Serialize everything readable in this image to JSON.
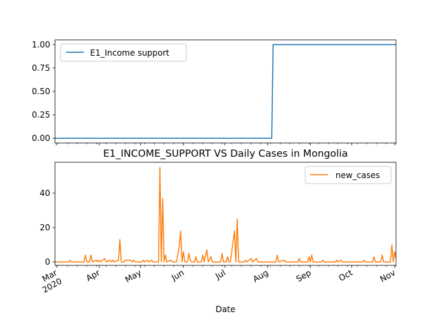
{
  "chart_data": [
    {
      "type": "line",
      "title": "",
      "xlabel": "",
      "ylabel": "",
      "xlim": [
        "2020-02-29",
        "2020-11-02"
      ],
      "ylim": [
        -0.05,
        1.05
      ],
      "yticks": [
        0.0,
        0.25,
        0.5,
        0.75,
        1.0
      ],
      "ytick_labels": [
        "0.00",
        "0.25",
        "0.50",
        "0.75",
        "1.00"
      ],
      "grid": false,
      "legend": "upper left",
      "series": [
        {
          "name": "E1_Income support",
          "color": "#1f77b4",
          "points": [
            [
              "2020-02-29",
              0
            ],
            [
              "2020-08-04",
              0
            ],
            [
              "2020-08-05",
              1
            ],
            [
              "2020-11-02",
              1
            ]
          ]
        }
      ]
    },
    {
      "type": "line",
      "title": "E1_INCOME_SUPPORT VS Daily Cases in Mongolia",
      "xlabel": "Date",
      "ylabel": "",
      "xlim": [
        "2020-02-29",
        "2020-11-02"
      ],
      "ylim": [
        -2,
        58
      ],
      "yticks": [
        0,
        20,
        40
      ],
      "ytick_labels": [
        "0",
        "20",
        "40"
      ],
      "grid": false,
      "legend": "upper right",
      "x_ticks": [
        "2020-03-01",
        "2020-04-01",
        "2020-05-01",
        "2020-06-01",
        "2020-07-01",
        "2020-08-01",
        "2020-09-01",
        "2020-10-01",
        "2020-11-01"
      ],
      "x_tick_labels": [
        "Mar\n2020",
        "Apr",
        "May",
        "Jun",
        "Jul",
        "Aug",
        "Sep",
        "Oct",
        "Nov"
      ],
      "series": [
        {
          "name": "new_cases",
          "color": "#ff7f0e",
          "points": [
            [
              "2020-02-29",
              0
            ],
            [
              "2020-03-10",
              0
            ],
            [
              "2020-03-11",
              1
            ],
            [
              "2020-03-12",
              0
            ],
            [
              "2020-03-21",
              0
            ],
            [
              "2020-03-22",
              4
            ],
            [
              "2020-03-23",
              0
            ],
            [
              "2020-03-25",
              0
            ],
            [
              "2020-03-26",
              4
            ],
            [
              "2020-03-27",
              0
            ],
            [
              "2020-03-30",
              1
            ],
            [
              "2020-03-31",
              0
            ],
            [
              "2020-04-01",
              1
            ],
            [
              "2020-04-02",
              0
            ],
            [
              "2020-04-05",
              2
            ],
            [
              "2020-04-06",
              0
            ],
            [
              "2020-04-09",
              1
            ],
            [
              "2020-04-10",
              0
            ],
            [
              "2020-04-11",
              1
            ],
            [
              "2020-04-12",
              0
            ],
            [
              "2020-04-15",
              1
            ],
            [
              "2020-04-16",
              13
            ],
            [
              "2020-04-17",
              0
            ],
            [
              "2020-04-19",
              0
            ],
            [
              "2020-04-20",
              1
            ],
            [
              "2020-04-24",
              1
            ],
            [
              "2020-04-25",
              0
            ],
            [
              "2020-04-26",
              1
            ],
            [
              "2020-04-27",
              0
            ],
            [
              "2020-05-02",
              0
            ],
            [
              "2020-05-03",
              1
            ],
            [
              "2020-05-04",
              0
            ],
            [
              "2020-05-06",
              1
            ],
            [
              "2020-05-07",
              0
            ],
            [
              "2020-05-09",
              1
            ],
            [
              "2020-05-10",
              0
            ],
            [
              "2020-05-14",
              0
            ],
            [
              "2020-05-15",
              55
            ],
            [
              "2020-05-16",
              0
            ],
            [
              "2020-05-17",
              37
            ],
            [
              "2020-05-18",
              0
            ],
            [
              "2020-05-19",
              4
            ],
            [
              "2020-05-20",
              0
            ],
            [
              "2020-05-23",
              1
            ],
            [
              "2020-05-24",
              0
            ],
            [
              "2020-05-27",
              0
            ],
            [
              "2020-05-29",
              9
            ],
            [
              "2020-05-30",
              18
            ],
            [
              "2020-05-31",
              0
            ],
            [
              "2020-06-01",
              6
            ],
            [
              "2020-06-02",
              0
            ],
            [
              "2020-06-04",
              0
            ],
            [
              "2020-06-05",
              5
            ],
            [
              "2020-06-06",
              1
            ],
            [
              "2020-06-07",
              0
            ],
            [
              "2020-06-09",
              0
            ],
            [
              "2020-06-10",
              3
            ],
            [
              "2020-06-11",
              0
            ],
            [
              "2020-06-14",
              0
            ],
            [
              "2020-06-15",
              4
            ],
            [
              "2020-06-16",
              0
            ],
            [
              "2020-06-18",
              7
            ],
            [
              "2020-06-19",
              0
            ],
            [
              "2020-06-21",
              3
            ],
            [
              "2020-06-22",
              0
            ],
            [
              "2020-06-28",
              0
            ],
            [
              "2020-06-29",
              5
            ],
            [
              "2020-06-30",
              0
            ],
            [
              "2020-07-02",
              0
            ],
            [
              "2020-07-03",
              3
            ],
            [
              "2020-07-04",
              0
            ],
            [
              "2020-07-05",
              0
            ],
            [
              "2020-07-07",
              12
            ],
            [
              "2020-07-08",
              18
            ],
            [
              "2020-07-09",
              0
            ],
            [
              "2020-07-10",
              25
            ],
            [
              "2020-07-11",
              0
            ],
            [
              "2020-07-15",
              0
            ],
            [
              "2020-07-16",
              1
            ],
            [
              "2020-07-17",
              0
            ],
            [
              "2020-07-20",
              2
            ],
            [
              "2020-07-21",
              0
            ],
            [
              "2020-07-24",
              2
            ],
            [
              "2020-07-25",
              0
            ],
            [
              "2020-08-07",
              0
            ],
            [
              "2020-08-08",
              4
            ],
            [
              "2020-08-09",
              0
            ],
            [
              "2020-08-13",
              1
            ],
            [
              "2020-08-14",
              0
            ],
            [
              "2020-08-23",
              0
            ],
            [
              "2020-08-24",
              2
            ],
            [
              "2020-08-25",
              0
            ],
            [
              "2020-08-30",
              0
            ],
            [
              "2020-08-31",
              3
            ],
            [
              "2020-09-01",
              0
            ],
            [
              "2020-09-02",
              4
            ],
            [
              "2020-09-03",
              0
            ],
            [
              "2020-09-09",
              0
            ],
            [
              "2020-09-10",
              1
            ],
            [
              "2020-09-11",
              0
            ],
            [
              "2020-09-19",
              0
            ],
            [
              "2020-09-20",
              1
            ],
            [
              "2020-09-21",
              0
            ],
            [
              "2020-09-23",
              1
            ],
            [
              "2020-09-24",
              0
            ],
            [
              "2020-10-09",
              0
            ],
            [
              "2020-10-10",
              1
            ],
            [
              "2020-10-11",
              0
            ],
            [
              "2020-10-16",
              0
            ],
            [
              "2020-10-17",
              3
            ],
            [
              "2020-10-18",
              0
            ],
            [
              "2020-10-22",
              0
            ],
            [
              "2020-10-23",
              4
            ],
            [
              "2020-10-24",
              0
            ],
            [
              "2020-10-29",
              0
            ],
            [
              "2020-10-30",
              10
            ],
            [
              "2020-10-31",
              0
            ],
            [
              "2020-11-01",
              6
            ],
            [
              "2020-11-02",
              2
            ]
          ]
        }
      ]
    }
  ]
}
